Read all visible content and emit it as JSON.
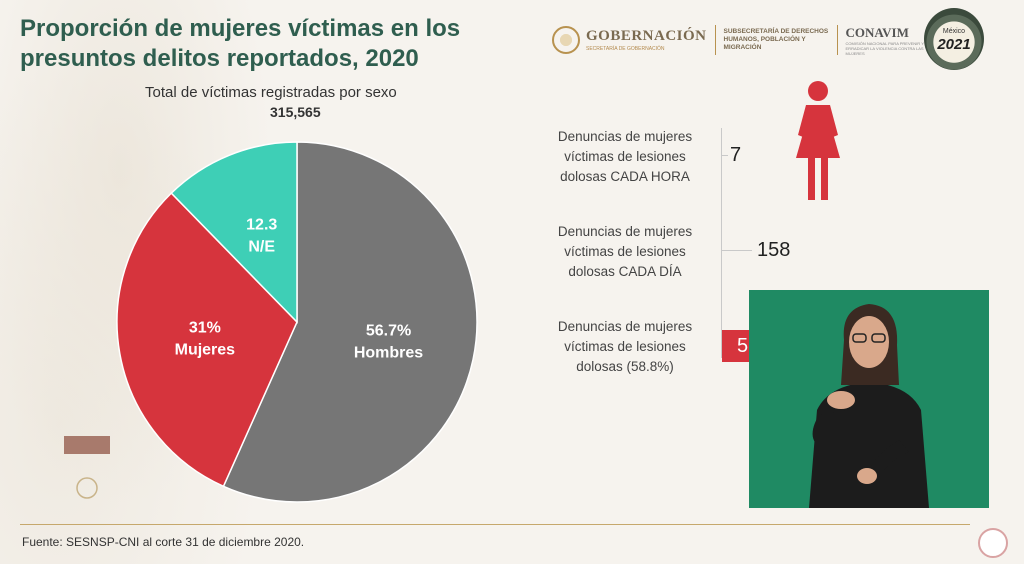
{
  "title": "Proporción de mujeres víctimas en los presuntos delitos reportados, 2020",
  "header": {
    "gobernacion": "GOBERNACIÓN",
    "gobernacion_sub": "SECRETARÍA DE GOBERNACIÓN",
    "subsecretaria": "SUBSECRETARÍA DE DERECHOS HUMANOS, POBLACIÓN Y MIGRACIÓN",
    "conavim": "CONAVIM",
    "conavim_sub": "COMISIÓN NACIONAL PARA PREVENIR Y ERRADICAR LA VIOLENCIA CONTRA LAS MUJERES",
    "badge_line1": "México",
    "badge_year": "2021"
  },
  "chart_data": {
    "type": "pie",
    "title": "Total de víctimas registradas por sexo",
    "total": "315,565",
    "slices": [
      {
        "name": "Hombres",
        "value": 56.7,
        "label": "56.7%",
        "color": "#767676"
      },
      {
        "name": "Mujeres",
        "value": 31.0,
        "label": "31%",
        "color": "#d6343d"
      },
      {
        "name": "N/E",
        "value": 12.3,
        "label": "12.3",
        "color": "#3ecfb6"
      }
    ]
  },
  "stats": [
    {
      "label_lines": [
        "Denuncias de mujeres",
        "víctimas de lesiones",
        "dolosas CADA HORA"
      ],
      "value": "7"
    },
    {
      "label_lines": [
        "Denuncias de mujeres",
        "víctimas de lesiones",
        "dolosas CADA DÍA"
      ],
      "value": "158"
    },
    {
      "label_lines": [
        "Denuncias de mujeres",
        "víctimas de lesiones",
        "dolosas (58.8%)"
      ],
      "value": "5"
    }
  ],
  "source": "Fuente: SESNSP-CNI al corte 31 de diciembre 2020."
}
